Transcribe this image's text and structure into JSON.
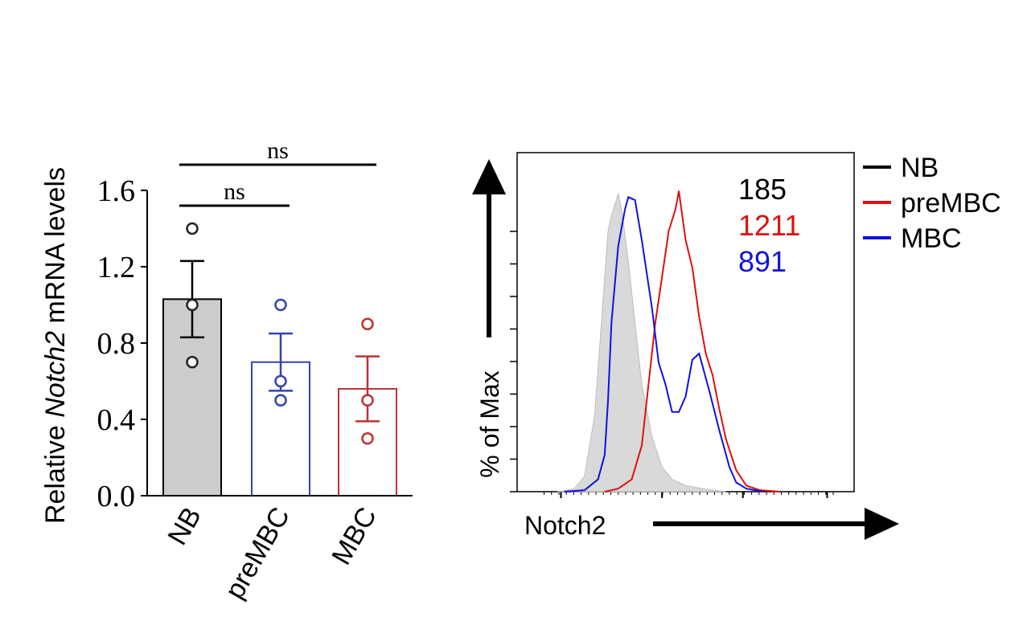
{
  "chart_data": [
    {
      "type": "bar",
      "ylabel_prefix": "Relative ",
      "ylabel_italic": "Notch2",
      "ylabel_suffix": " mRNA levels",
      "ylim": [
        0,
        1.6
      ],
      "yticks": [
        "0.0",
        "0.4",
        "0.8",
        "1.2",
        "1.6"
      ],
      "categories": [
        "NB",
        "preMBC",
        "MBC"
      ],
      "values": [
        1.03,
        0.7,
        0.56
      ],
      "sem": [
        0.2,
        0.15,
        0.17
      ],
      "points": [
        [
          1.4,
          1.0,
          0.7
        ],
        [
          1.0,
          0.6,
          0.5
        ],
        [
          0.9,
          0.5,
          0.3
        ]
      ],
      "bar_fill": [
        "#cccccc",
        "#ffffff",
        "#ffffff"
      ],
      "bar_stroke": [
        "#000000",
        "#3344aa",
        "#bb3333"
      ],
      "significance": [
        {
          "from": "NB",
          "to": "preMBC",
          "label": "ns"
        },
        {
          "from": "NB",
          "to": "MBC",
          "label": "ns"
        }
      ]
    },
    {
      "type": "area",
      "ylabel": "% of Max",
      "xlabel": "Notch2",
      "series": [
        {
          "name": "NB",
          "mfi": "185",
          "color": "#000000",
          "fill": "#d9d9d9",
          "x": [
            0.12,
            0.17,
            0.2,
            0.23,
            0.25,
            0.27,
            0.28,
            0.3,
            0.31,
            0.33,
            0.35,
            0.37,
            0.4,
            0.43,
            0.46,
            0.5,
            0.55,
            0.62
          ],
          "y": [
            0,
            0.01,
            0.05,
            0.25,
            0.55,
            0.85,
            0.9,
            0.97,
            0.92,
            0.75,
            0.55,
            0.35,
            0.18,
            0.08,
            0.04,
            0.02,
            0.01,
            0
          ]
        },
        {
          "name": "preMBC",
          "mfi": "1211",
          "color": "#dd1111",
          "x": [
            0.26,
            0.3,
            0.34,
            0.37,
            0.39,
            0.41,
            0.43,
            0.45,
            0.47,
            0.48,
            0.5,
            0.52,
            0.54,
            0.56,
            0.58,
            0.6,
            0.62,
            0.65,
            0.68,
            0.72,
            0.78
          ],
          "y": [
            0,
            0.01,
            0.04,
            0.15,
            0.35,
            0.55,
            0.7,
            0.85,
            0.92,
            0.98,
            0.82,
            0.73,
            0.57,
            0.45,
            0.38,
            0.27,
            0.17,
            0.07,
            0.02,
            0.005,
            0
          ]
        },
        {
          "name": "MBC",
          "mfi": "891",
          "color": "#1111dd",
          "x": [
            0.14,
            0.2,
            0.24,
            0.26,
            0.27,
            0.28,
            0.3,
            0.32,
            0.33,
            0.35,
            0.37,
            0.4,
            0.42,
            0.44,
            0.46,
            0.48,
            0.5,
            0.52,
            0.54,
            0.57,
            0.6,
            0.63,
            0.65,
            0.68,
            0.73
          ],
          "y": [
            0,
            0.005,
            0.04,
            0.12,
            0.3,
            0.55,
            0.8,
            0.92,
            0.96,
            0.95,
            0.82,
            0.6,
            0.42,
            0.35,
            0.26,
            0.26,
            0.31,
            0.43,
            0.45,
            0.33,
            0.2,
            0.08,
            0.03,
            0.01,
            0
          ]
        }
      ],
      "legend": [
        "NB",
        "preMBC",
        "MBC"
      ]
    }
  ]
}
